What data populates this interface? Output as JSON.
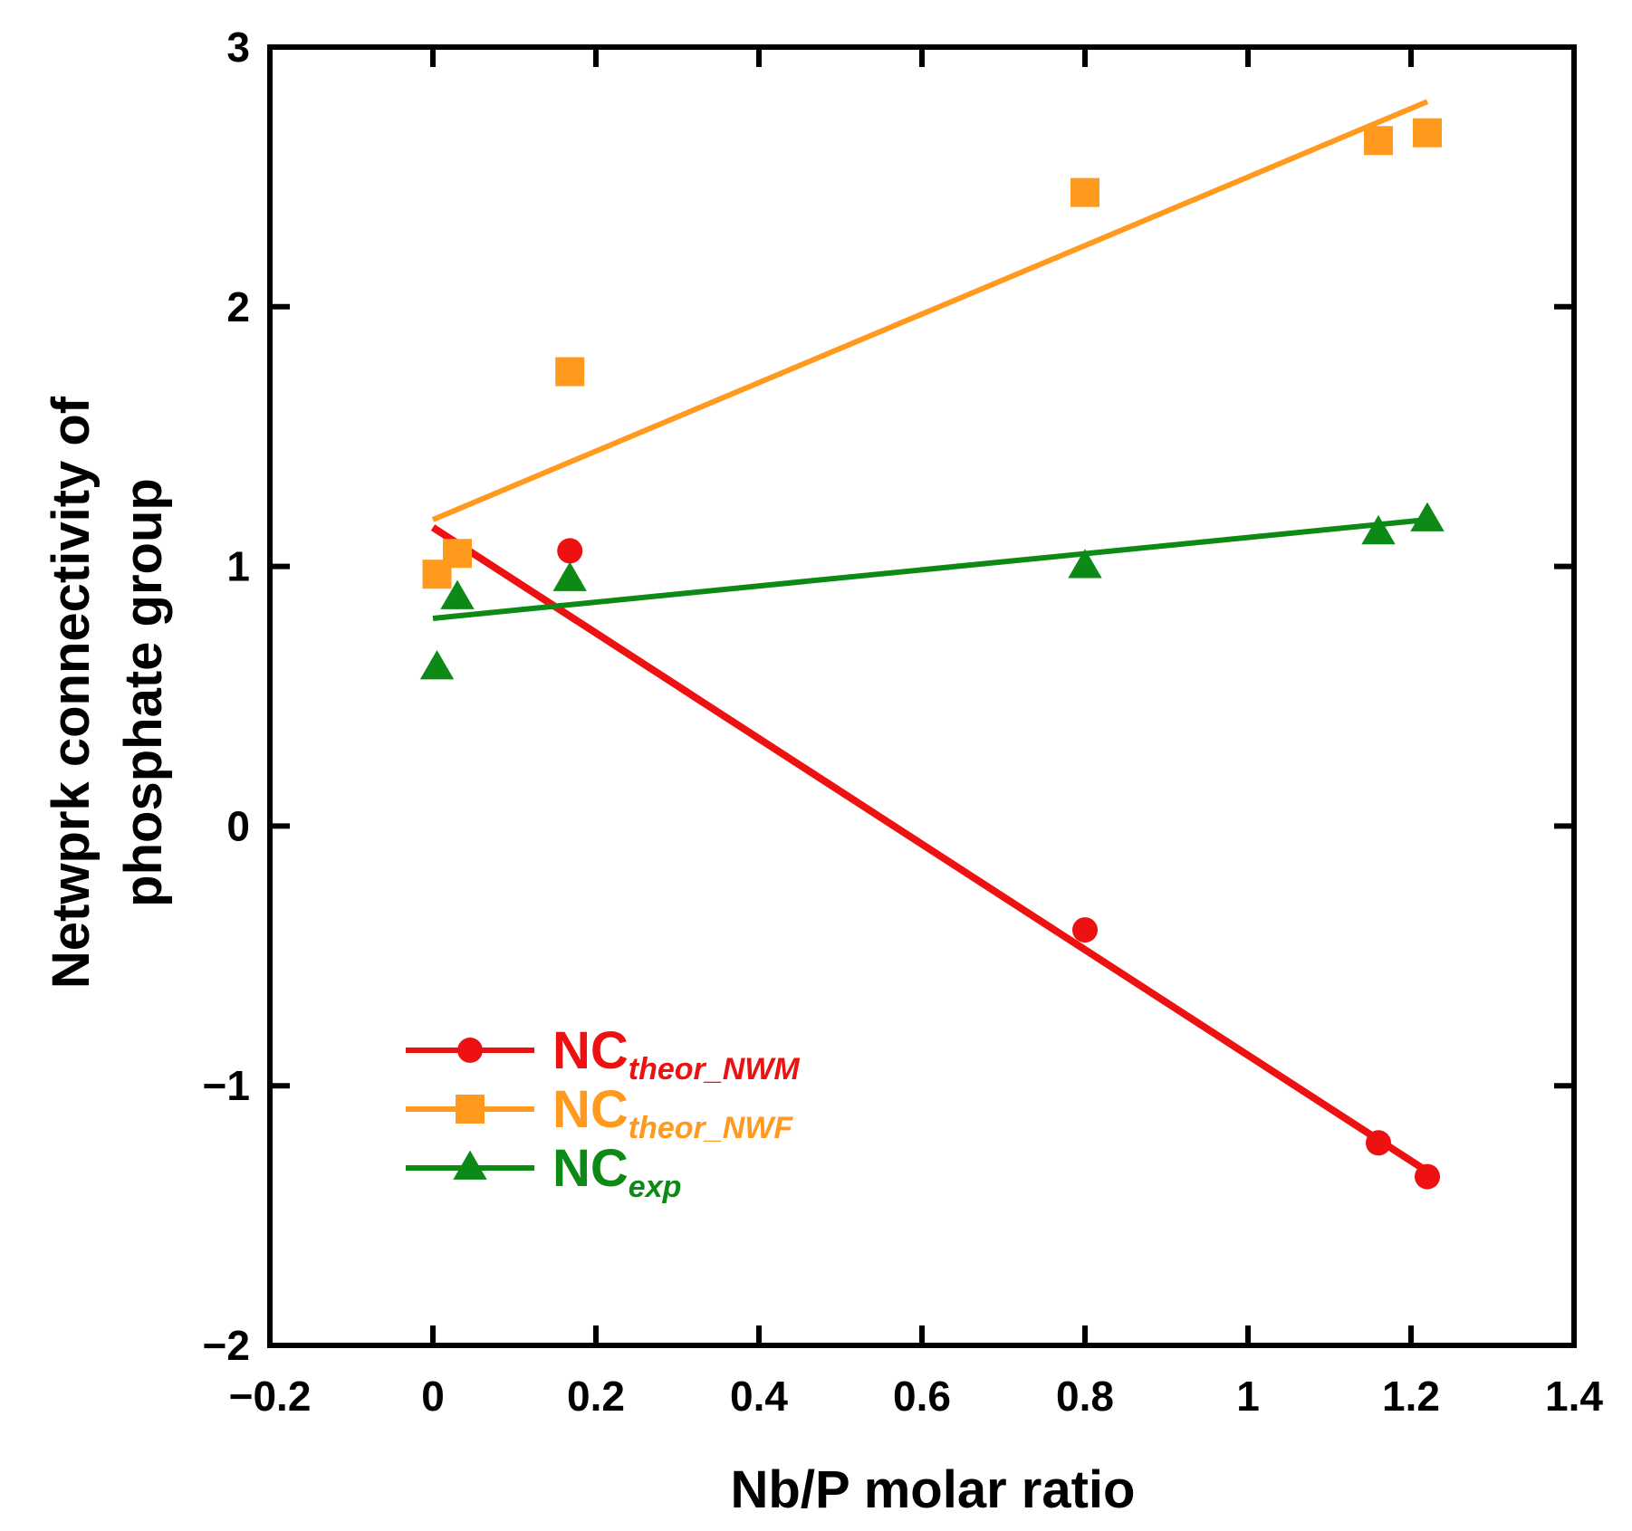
{
  "chart_data": {
    "type": "scatter",
    "xlabel": "Nb/P molar ratio",
    "ylabel": [
      "Netwprk connectivity of",
      "phosphate group"
    ],
    "xlim": [
      -0.2,
      1.4
    ],
    "ylim": [
      -2,
      3
    ],
    "xticks": [
      -0.2,
      0,
      0.2,
      0.4,
      0.6,
      0.8,
      1,
      1.2,
      1.4
    ],
    "yticks": [
      -2,
      -1,
      0,
      1,
      2,
      3
    ],
    "xtick_labels": [
      "−0.2",
      "0",
      "0.2",
      "0.4",
      "0.6",
      "0.8",
      "1",
      "1.2",
      "1.4"
    ],
    "ytick_labels": [
      "−2",
      "−1",
      "0",
      "1",
      "2",
      "3"
    ],
    "grid": false,
    "legend_position": "lower-left",
    "series": [
      {
        "name_main": "NC",
        "name_sub": "theor_NWM",
        "color": "#ee1111",
        "marker": "circle",
        "points": [
          [
            0.168,
            1.06
          ],
          [
            0.8,
            -0.4
          ],
          [
            1.16,
            -1.22
          ],
          [
            1.22,
            -1.35
          ]
        ],
        "fit": [
          [
            0.0,
            1.15
          ],
          [
            1.22,
            -1.33
          ]
        ]
      },
      {
        "name_main": "NC",
        "name_sub": "theor_NWF",
        "color": "#ff9a1f",
        "marker": "square",
        "points": [
          [
            0.005,
            0.97
          ],
          [
            0.03,
            1.05
          ],
          [
            0.168,
            1.75
          ],
          [
            0.8,
            2.44
          ],
          [
            1.16,
            2.64
          ],
          [
            1.22,
            2.67
          ]
        ],
        "fit": [
          [
            0.0,
            1.18
          ],
          [
            1.22,
            2.79
          ]
        ]
      },
      {
        "name_main": "NC",
        "name_sub": "exp",
        "color": "#0d8a16",
        "marker": "triangle",
        "points": [
          [
            0.005,
            0.61
          ],
          [
            0.03,
            0.88
          ],
          [
            0.168,
            0.95
          ],
          [
            0.8,
            1.0
          ],
          [
            1.16,
            1.13
          ],
          [
            1.22,
            1.18
          ]
        ],
        "fit": [
          [
            0.0,
            0.8
          ],
          [
            1.22,
            1.18
          ]
        ]
      }
    ]
  }
}
